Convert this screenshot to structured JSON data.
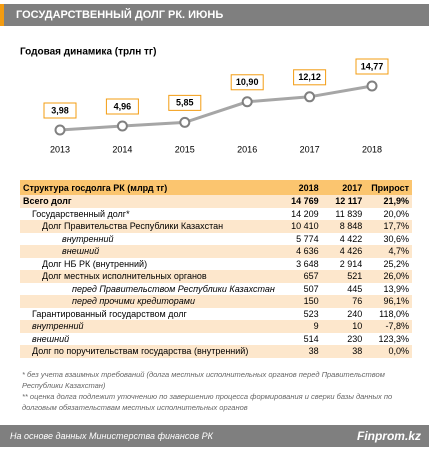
{
  "header": {
    "title": "ГОСУДАРСТВЕННЫЙ ДОЛГ РК. ИЮНЬ"
  },
  "chart_data": {
    "type": "line",
    "title": "Годовая динамика (трлн тг)",
    "categories": [
      "2013",
      "2014",
      "2015",
      "2016",
      "2017",
      "2018"
    ],
    "values": [
      3.98,
      4.96,
      5.85,
      10.9,
      12.12,
      14.77
    ],
    "value_labels": [
      "3,98",
      "4,96",
      "5,85",
      "10,90",
      "12,12",
      "14,77"
    ],
    "color": "#a6a6a6",
    "label_border": "#f39c12"
  },
  "table": {
    "header": [
      "Структура госдолга РК (млрд тг)",
      "2018",
      "2017",
      "Прирост"
    ],
    "rows": [
      [
        "Всего долг",
        "14 769",
        "12 117",
        "21,9%"
      ],
      [
        "Государственный долг*",
        "14 209",
        "11 839",
        "20,0%"
      ],
      [
        "Долг Правительства Республики Казахстан",
        "10 410",
        "8 848",
        "17,7%"
      ],
      [
        "внутренний",
        "5 774",
        "4 422",
        "30,6%"
      ],
      [
        "внешний",
        "4 636",
        "4 426",
        "4,7%"
      ],
      [
        "Долг НБ РК (внутренний)",
        "3 648",
        "2 914",
        "25,2%"
      ],
      [
        "Долг местных исполнительных органов",
        "657",
        "521",
        "26,0%"
      ],
      [
        "перед Правительством Республики Казахстан",
        "507",
        "445",
        "13,9%"
      ],
      [
        "перед прочими кредиторами",
        "150",
        "76",
        "96,1%"
      ],
      [
        "Гарантированный государством долг",
        "523",
        "240",
        "118,0%"
      ],
      [
        "внутренний",
        "9",
        "10",
        "-7,8%"
      ],
      [
        "внешний",
        "514",
        "230",
        "123,3%"
      ],
      [
        "Долг по поручительствам государства (внутренний)",
        "38",
        "38",
        "0,0%"
      ]
    ]
  },
  "notes": [
    "* без учета взаимных требований (долга местных исполнительных органов перед Правительством Республики Казахстан)",
    "** оценка долга подлежит уточнению по завершению процесса формирования и сверки базы данных по долговым обязательствам местных исполнительных органов"
  ],
  "footer": {
    "source": "На основе данных Министерства финансов РК",
    "brand": "Finprom.kz"
  }
}
